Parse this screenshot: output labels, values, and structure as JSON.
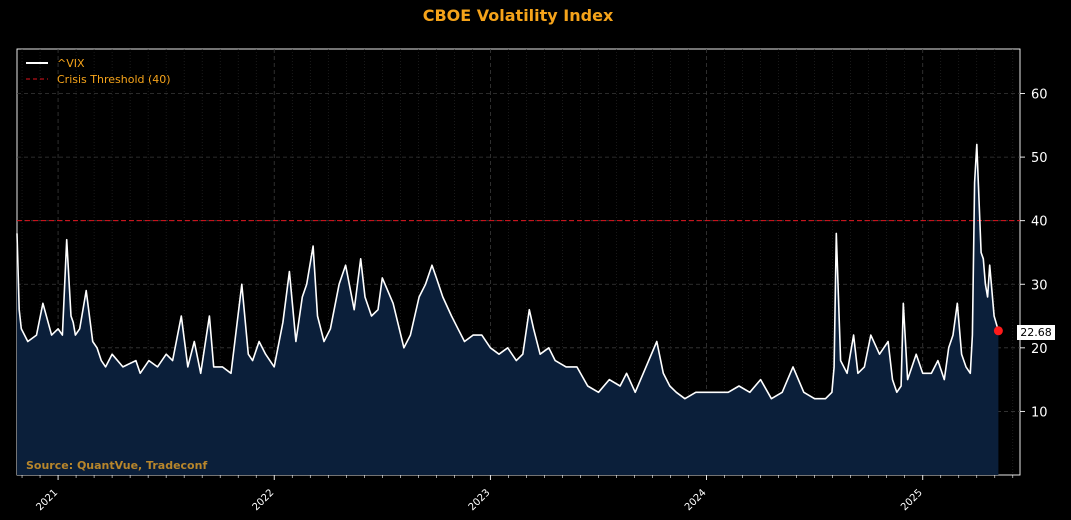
{
  "chart_data": {
    "type": "area",
    "title": "CBOE Volatility Index",
    "series_name": "^VIX",
    "threshold": {
      "label": "Crisis Threshold (40)",
      "value": 40
    },
    "ylim": [
      0,
      67
    ],
    "yticks": [
      10,
      20,
      30,
      40,
      50,
      60
    ],
    "xlim": [
      2020.81,
      2025.45
    ],
    "xticks": [
      {
        "label": "2021",
        "x": 2021.0
      },
      {
        "label": "2022",
        "x": 2022.0
      },
      {
        "label": "2023",
        "x": 2023.0
      },
      {
        "label": "2024",
        "x": 2024.0
      },
      {
        "label": "2025",
        "x": 2025.0
      }
    ],
    "last_value": 22.68,
    "last_value_label": "22.68",
    "source": "Source: QuantVue, Tradeconf",
    "grid": true,
    "legend_position": "top-left",
    "x": [
      2020.81,
      2020.82,
      2020.83,
      2020.86,
      2020.9,
      2020.93,
      2020.97,
      2021.0,
      2021.02,
      2021.04,
      2021.06,
      2021.07,
      2021.08,
      2021.1,
      2021.13,
      2021.16,
      2021.18,
      2021.2,
      2021.22,
      2021.25,
      2021.3,
      2021.36,
      2021.38,
      2021.42,
      2021.46,
      2021.5,
      2021.53,
      2021.57,
      2021.6,
      2021.63,
      2021.66,
      2021.7,
      2021.72,
      2021.76,
      2021.8,
      2021.85,
      2021.88,
      2021.9,
      2021.93,
      2021.96,
      2022.0,
      2022.04,
      2022.07,
      2022.1,
      2022.13,
      2022.15,
      2022.18,
      2022.2,
      2022.23,
      2022.26,
      2022.3,
      2022.33,
      2022.37,
      2022.4,
      2022.42,
      2022.45,
      2022.48,
      2022.5,
      2022.55,
      2022.6,
      2022.63,
      2022.67,
      2022.7,
      2022.73,
      2022.75,
      2022.78,
      2022.82,
      2022.85,
      2022.88,
      2022.92,
      2022.96,
      2023.0,
      2023.04,
      2023.08,
      2023.12,
      2023.15,
      2023.18,
      2023.2,
      2023.23,
      2023.27,
      2023.3,
      2023.35,
      2023.4,
      2023.45,
      2023.5,
      2023.55,
      2023.6,
      2023.63,
      2023.67,
      2023.72,
      2023.77,
      2023.8,
      2023.83,
      2023.86,
      2023.9,
      2023.95,
      2024.0,
      2024.05,
      2024.1,
      2024.15,
      2024.2,
      2024.25,
      2024.3,
      2024.35,
      2024.4,
      2024.45,
      2024.5,
      2024.55,
      2024.58,
      2024.59,
      2024.6,
      2024.62,
      2024.65,
      2024.68,
      2024.7,
      2024.73,
      2024.76,
      2024.8,
      2024.84,
      2024.86,
      2024.88,
      2024.9,
      2024.91,
      2024.93,
      2024.97,
      2025.0,
      2025.04,
      2025.07,
      2025.1,
      2025.12,
      2025.14,
      2025.16,
      2025.18,
      2025.2,
      2025.22,
      2025.23,
      2025.24,
      2025.25,
      2025.27,
      2025.28,
      2025.29,
      2025.3,
      2025.31,
      2025.33,
      2025.35
    ],
    "values": [
      38,
      26,
      23,
      21,
      22,
      27,
      22,
      23,
      22,
      37,
      25,
      24,
      22,
      23,
      29,
      21,
      20,
      18,
      17,
      19,
      17,
      18,
      16,
      18,
      17,
      19,
      18,
      25,
      17,
      21,
      16,
      25,
      17,
      17,
      16,
      30,
      19,
      18,
      21,
      19,
      17,
      24,
      32,
      21,
      28,
      30,
      36,
      25,
      21,
      23,
      30,
      33,
      26,
      34,
      28,
      25,
      26,
      31,
      27,
      20,
      22,
      28,
      30,
      33,
      31,
      28,
      25,
      23,
      21,
      22,
      22,
      20,
      19,
      20,
      18,
      19,
      26,
      23,
      19,
      20,
      18,
      17,
      17,
      14,
      13,
      15,
      14,
      16,
      13,
      17,
      21,
      16,
      14,
      13,
      12,
      13,
      13,
      13,
      13,
      14,
      13,
      15,
      12,
      13,
      17,
      13,
      12,
      12,
      13,
      17,
      38,
      18,
      16,
      22,
      16,
      17,
      22,
      19,
      21,
      15,
      13,
      14,
      27,
      15,
      19,
      16,
      16,
      18,
      15,
      20,
      22,
      27,
      19,
      17,
      16,
      22,
      46,
      52,
      35,
      34,
      30,
      28,
      33,
      25,
      22.68
    ]
  }
}
